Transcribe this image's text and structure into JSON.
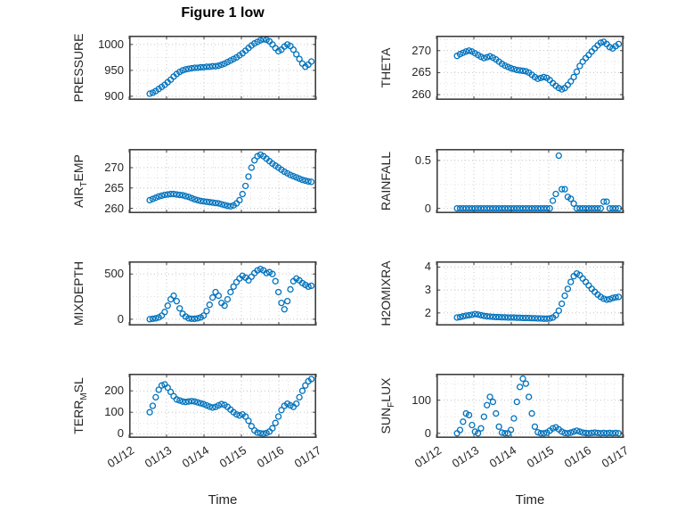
{
  "figure": {
    "title": "Figure 1 low",
    "xlabel": "Time",
    "marker_color": "#0072BD",
    "x_tick_labels": [
      "01/12",
      "01/13",
      "01/14",
      "01/15",
      "01/16",
      "01/17"
    ],
    "x_ticks": [
      0,
      1,
      2,
      3,
      4,
      5
    ]
  },
  "chart_data": [
    {
      "type": "scatter",
      "ylabel": {
        "pre": "PRESSURE",
        "sub": "",
        "post": ""
      },
      "yticks": [
        900,
        950,
        1000
      ],
      "ylim": [
        893,
        1017
      ],
      "x_start": 0.55,
      "x_step": 0.08,
      "values": [
        905,
        907,
        910,
        914,
        918,
        922,
        927,
        932,
        938,
        943,
        947,
        950,
        952,
        953,
        954,
        955,
        955,
        956,
        956,
        957,
        957,
        958,
        958,
        959,
        961,
        963,
        966,
        969,
        972,
        975,
        979,
        983,
        988,
        993,
        998,
        1002,
        1005,
        1008,
        1010,
        1009,
        1006,
        1000,
        993,
        987,
        990,
        996,
        1000,
        997,
        990,
        981,
        972,
        963,
        957,
        961,
        967
      ]
    },
    {
      "type": "scatter",
      "ylabel": {
        "pre": "THETA",
        "sub": "",
        "post": ""
      },
      "yticks": [
        260,
        265,
        270
      ],
      "ylim": [
        258.8,
        273.4
      ],
      "x_start": 0.55,
      "x_step": 0.08,
      "values": [
        268.8,
        269.2,
        269.5,
        269.8,
        270,
        269.8,
        269.4,
        269,
        268.6,
        268.3,
        268.5,
        268.7,
        268.4,
        268,
        267.5,
        267,
        266.6,
        266.3,
        266,
        265.8,
        265.6,
        265.5,
        265.4,
        265.3,
        265,
        264.5,
        264,
        263.6,
        263.8,
        264,
        263.8,
        263.3,
        262.6,
        262,
        261.5,
        261.2,
        261.5,
        262.2,
        263,
        264,
        265.2,
        266.5,
        267.5,
        268.3,
        269,
        269.8,
        270.5,
        271.2,
        271.8,
        272,
        271.5,
        270.8,
        270.5,
        271,
        271.5
      ]
    },
    {
      "type": "scatter",
      "ylabel": {
        "pre": "AIR",
        "sub": "T",
        "post": "EMP"
      },
      "yticks": [
        260,
        265,
        270
      ],
      "ylim": [
        258.8,
        274.6
      ],
      "x_start": 0.55,
      "x_step": 0.08,
      "values": [
        262,
        262.3,
        262.6,
        262.9,
        263.1,
        263.3,
        263.4,
        263.5,
        263.5,
        263.4,
        263.3,
        263.2,
        263,
        262.8,
        262.5,
        262.2,
        262,
        261.8,
        261.7,
        261.6,
        261.5,
        261.4,
        261.3,
        261.2,
        261,
        260.8,
        260.6,
        260.5,
        260.7,
        261.2,
        262,
        263.5,
        265.5,
        267.8,
        270,
        271.8,
        272.8,
        273.2,
        272.8,
        272.2,
        271.6,
        271,
        270.5,
        270,
        269.5,
        269,
        268.6,
        268.2,
        267.9,
        267.6,
        267.3,
        267,
        266.8,
        266.6,
        266.5
      ]
    },
    {
      "type": "scatter",
      "ylabel": {
        "pre": "RAINFALL",
        "sub": "",
        "post": ""
      },
      "yticks": [
        0,
        0.5
      ],
      "ylim": [
        -0.05,
        0.62
      ],
      "x_start": 0.55,
      "x_step": 0.08,
      "values": [
        0,
        0,
        0,
        0,
        0,
        0,
        0,
        0,
        0,
        0,
        0,
        0,
        0,
        0,
        0,
        0,
        0,
        0,
        0,
        0,
        0,
        0,
        0,
        0,
        0,
        0,
        0,
        0,
        0,
        0,
        0,
        0,
        0.08,
        0.15,
        0.55,
        0.2,
        0.2,
        0.12,
        0.1,
        0.05,
        0,
        0,
        0,
        0,
        0,
        0,
        0,
        0,
        0,
        0.07,
        0.07,
        0,
        0,
        0,
        0
      ]
    },
    {
      "type": "scatter",
      "ylabel": {
        "pre": "MIXDEPTH",
        "sub": "",
        "post": ""
      },
      "yticks": [
        0,
        500
      ],
      "ylim": [
        -70,
        640
      ],
      "x_start": 0.55,
      "x_step": 0.08,
      "values": [
        0,
        5,
        10,
        20,
        40,
        80,
        150,
        220,
        260,
        200,
        120,
        60,
        30,
        10,
        5,
        5,
        10,
        20,
        40,
        90,
        160,
        240,
        300,
        260,
        180,
        150,
        220,
        300,
        360,
        410,
        450,
        480,
        460,
        430,
        470,
        510,
        540,
        555,
        540,
        510,
        520,
        500,
        420,
        300,
        180,
        110,
        200,
        330,
        420,
        450,
        430,
        400,
        380,
        360,
        370
      ]
    },
    {
      "type": "scatter",
      "ylabel": {
        "pre": "H2OMIXRA",
        "sub": "",
        "post": ""
      },
      "yticks": [
        2,
        3,
        4
      ],
      "ylim": [
        1.45,
        4.25
      ],
      "x_start": 0.55,
      "x_step": 0.08,
      "values": [
        1.8,
        1.82,
        1.85,
        1.88,
        1.9,
        1.92,
        1.95,
        1.93,
        1.9,
        1.87,
        1.85,
        1.84,
        1.83,
        1.82,
        1.82,
        1.81,
        1.81,
        1.8,
        1.8,
        1.8,
        1.79,
        1.79,
        1.78,
        1.78,
        1.78,
        1.77,
        1.77,
        1.76,
        1.76,
        1.75,
        1.75,
        1.76,
        1.8,
        1.9,
        2.1,
        2.4,
        2.75,
        3.05,
        3.35,
        3.6,
        3.72,
        3.65,
        3.5,
        3.35,
        3.2,
        3.05,
        2.92,
        2.8,
        2.7,
        2.62,
        2.58,
        2.6,
        2.65,
        2.68,
        2.7
      ]
    },
    {
      "type": "scatter",
      "ylabel": {
        "pre": "TERR",
        "sub": "M",
        "post": "SL"
      },
      "yticks": [
        0,
        100,
        200
      ],
      "ylim": [
        -20,
        280
      ],
      "x_start": 0.55,
      "x_step": 0.08,
      "values": [
        100,
        130,
        170,
        205,
        225,
        230,
        215,
        195,
        175,
        160,
        155,
        150,
        148,
        150,
        152,
        150,
        146,
        142,
        138,
        132,
        126,
        122,
        125,
        132,
        138,
        134,
        125,
        112,
        100,
        90,
        85,
        90,
        80,
        60,
        35,
        15,
        5,
        2,
        0,
        3,
        10,
        25,
        50,
        80,
        110,
        130,
        140,
        132,
        125,
        140,
        170,
        200,
        225,
        245,
        255
      ]
    },
    {
      "type": "scatter",
      "ylabel": {
        "pre": "SUN",
        "sub": "F",
        "post": "LUX"
      },
      "yticks": [
        0,
        100
      ],
      "ylim": [
        -14,
        180
      ],
      "x_start": 0.55,
      "x_step": 0.08,
      "values": [
        0,
        10,
        35,
        60,
        55,
        25,
        5,
        0,
        15,
        50,
        85,
        110,
        95,
        60,
        20,
        2,
        0,
        0,
        10,
        45,
        95,
        140,
        165,
        150,
        110,
        60,
        20,
        3,
        0,
        0,
        2,
        8,
        15,
        18,
        12,
        5,
        1,
        0,
        2,
        5,
        8,
        5,
        2,
        1,
        0,
        1,
        2,
        1,
        0,
        1,
        0,
        1,
        0,
        1,
        0
      ]
    }
  ]
}
